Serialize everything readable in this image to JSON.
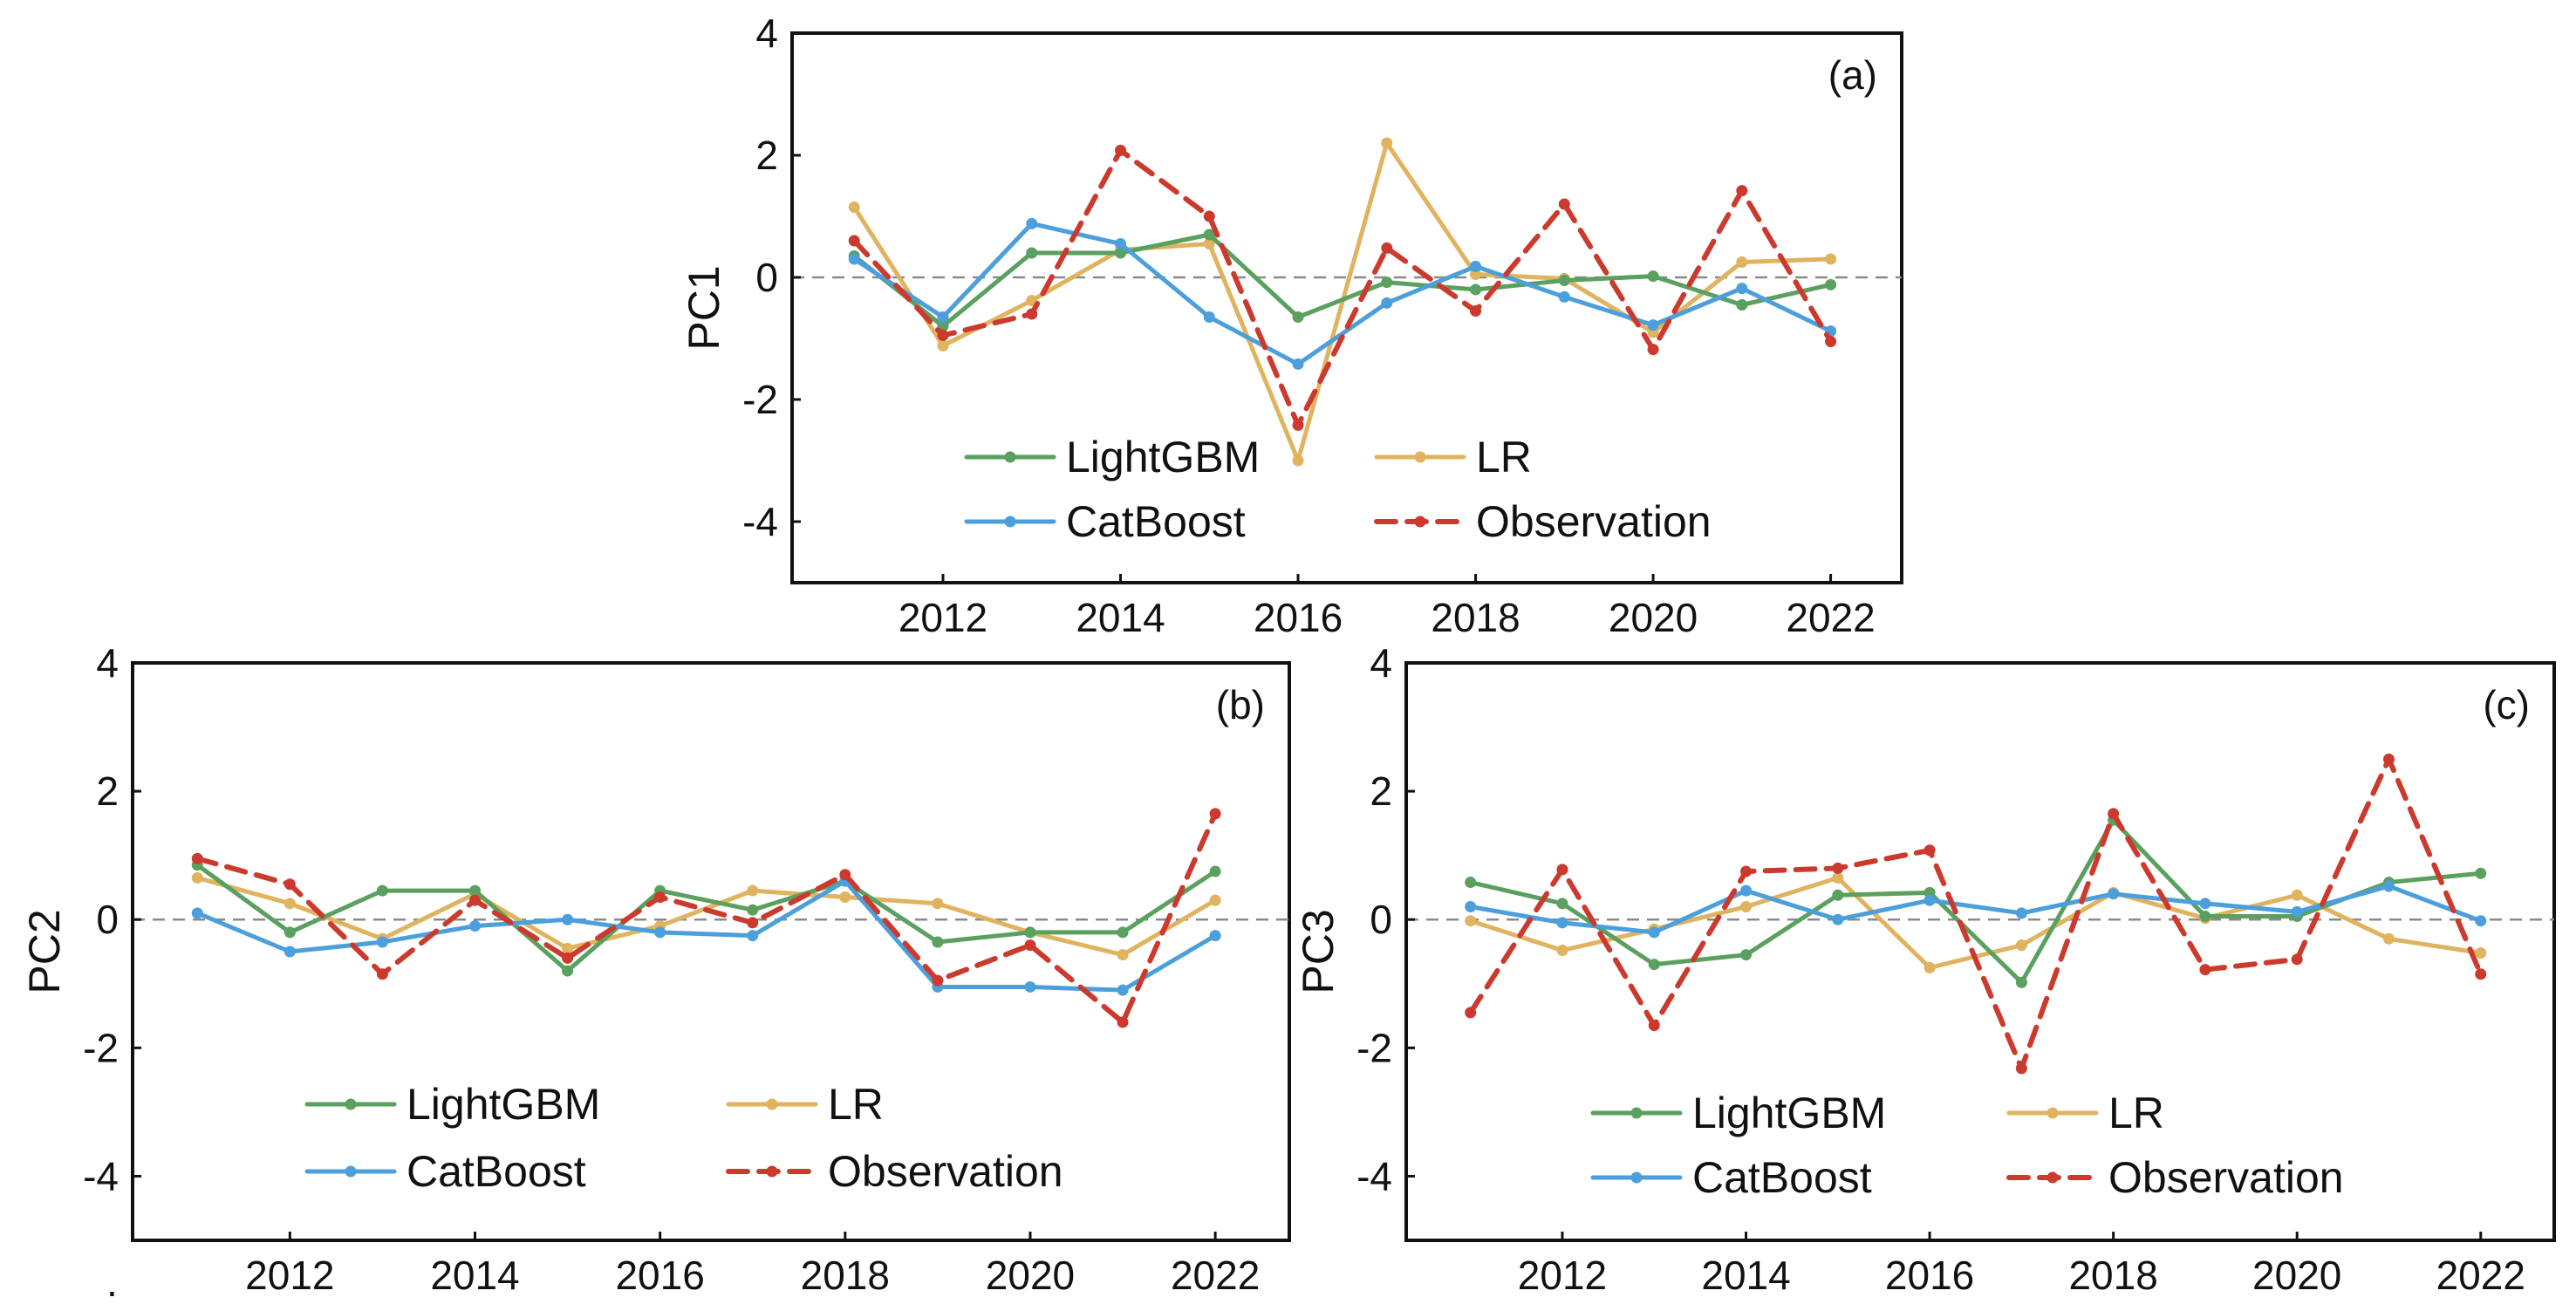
{
  "chart_data": [
    {
      "type": "line",
      "panel_label": "(a)",
      "title": "",
      "xlabel": "",
      "ylabel": "PC1",
      "xlim": [
        2010.3,
        2022.8
      ],
      "ylim": [
        -5,
        4
      ],
      "xticks": [
        2012,
        2014,
        2016,
        2018,
        2020,
        2022
      ],
      "yticks": [
        -4,
        -2,
        0,
        2,
        4
      ],
      "x": [
        2011,
        2012,
        2013,
        2014,
        2015,
        2016,
        2017,
        2018,
        2019,
        2020,
        2021,
        2022
      ],
      "series": [
        {
          "name": "LightGBM",
          "values": [
            0.35,
            -0.8,
            0.4,
            0.4,
            0.7,
            -0.65,
            -0.08,
            -0.2,
            -0.05,
            0.02,
            -0.45,
            -0.12
          ]
        },
        {
          "name": "LR",
          "values": [
            1.15,
            -1.12,
            -0.38,
            0.45,
            0.55,
            -3.0,
            2.2,
            0.05,
            -0.02,
            -0.9,
            0.25,
            0.3
          ]
        },
        {
          "name": "CatBoost",
          "values": [
            0.3,
            -0.65,
            0.88,
            0.55,
            -0.65,
            -1.42,
            -0.42,
            0.18,
            -0.32,
            -0.78,
            -0.18,
            -0.88
          ]
        },
        {
          "name": "Observation",
          "values": [
            0.6,
            -0.95,
            -0.6,
            2.08,
            1.0,
            -2.42,
            0.48,
            -0.55,
            1.2,
            -1.18,
            1.42,
            -1.05
          ]
        }
      ]
    },
    {
      "type": "line",
      "panel_label": "(b)",
      "title": "",
      "xlabel": "",
      "ylabel": "PC2",
      "xlim": [
        2010.3,
        2022.8
      ],
      "ylim": [
        -5,
        4
      ],
      "xticks": [
        2012,
        2014,
        2016,
        2018,
        2020,
        2022
      ],
      "yticks": [
        -4,
        -2,
        0,
        2,
        4
      ],
      "x": [
        2011,
        2012,
        2013,
        2014,
        2015,
        2016,
        2017,
        2018,
        2019,
        2020,
        2021,
        2022
      ],
      "series": [
        {
          "name": "LightGBM",
          "values": [
            0.85,
            -0.2,
            0.45,
            0.45,
            -0.8,
            0.45,
            0.15,
            0.6,
            -0.35,
            -0.2,
            -0.2,
            0.75
          ]
        },
        {
          "name": "LR",
          "values": [
            0.65,
            0.25,
            -0.3,
            0.4,
            -0.45,
            -0.1,
            0.45,
            0.35,
            0.25,
            -0.2,
            -0.55,
            0.3
          ]
        },
        {
          "name": "CatBoost",
          "values": [
            0.1,
            -0.5,
            -0.35,
            -0.1,
            0.0,
            -0.2,
            -0.25,
            0.6,
            -1.05,
            -1.05,
            -1.1,
            -0.25
          ]
        },
        {
          "name": "Observation",
          "values": [
            0.95,
            0.55,
            -0.85,
            0.3,
            -0.6,
            0.35,
            -0.05,
            0.7,
            -0.95,
            -0.4,
            -1.6,
            1.65
          ]
        }
      ]
    },
    {
      "type": "line",
      "panel_label": "(c)",
      "title": "",
      "xlabel": "",
      "ylabel": "PC3",
      "xlim": [
        2010.3,
        2022.8
      ],
      "ylim": [
        -5,
        4
      ],
      "xticks": [
        2012,
        2014,
        2016,
        2018,
        2020,
        2022
      ],
      "yticks": [
        -4,
        -2,
        0,
        2,
        4
      ],
      "x": [
        2011,
        2012,
        2013,
        2014,
        2015,
        2016,
        2017,
        2018,
        2019,
        2020,
        2021,
        2022
      ],
      "series": [
        {
          "name": "LightGBM",
          "values": [
            0.58,
            0.25,
            -0.7,
            -0.55,
            0.38,
            0.42,
            -0.98,
            1.55,
            0.05,
            0.05,
            0.58,
            0.72
          ]
        },
        {
          "name": "LR",
          "values": [
            -0.02,
            -0.48,
            -0.15,
            0.2,
            0.65,
            -0.75,
            -0.4,
            0.42,
            0.02,
            0.38,
            -0.3,
            -0.52
          ]
        },
        {
          "name": "CatBoost",
          "values": [
            0.2,
            -0.05,
            -0.2,
            0.45,
            0.0,
            0.3,
            0.1,
            0.4,
            0.25,
            0.12,
            0.52,
            -0.02
          ]
        },
        {
          "name": "Observation",
          "values": [
            -1.45,
            0.78,
            -1.65,
            0.75,
            0.8,
            1.08,
            -2.32,
            1.65,
            -0.78,
            -0.62,
            2.5,
            -0.85
          ]
        }
      ]
    }
  ],
  "legend": [
    {
      "name": "LightGBM",
      "color": "#5aa05e",
      "style": "solid"
    },
    {
      "name": "LR",
      "color": "#e0b35e",
      "style": "solid"
    },
    {
      "name": "CatBoost",
      "color": "#4b9fdc",
      "style": "solid"
    },
    {
      "name": "Observation",
      "color": "#cc3a2e",
      "style": "dashed"
    }
  ],
  "stray_mark": "."
}
